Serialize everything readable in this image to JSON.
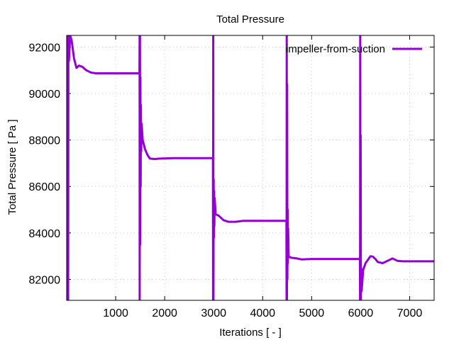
{
  "chart_data": {
    "type": "line",
    "title": "Total Pressure",
    "xlabel": "Iterations [ - ]",
    "ylabel": "Total Pressure [ Pa ]",
    "xlim": [
      0,
      7500
    ],
    "ylim": [
      81100,
      92500
    ],
    "x_ticks": [
      1000,
      2000,
      3000,
      4000,
      5000,
      6000,
      7000
    ],
    "y_ticks": [
      82000,
      84000,
      86000,
      88000,
      90000,
      92000
    ],
    "x_tick_labels": [
      "1000",
      "2000",
      "3000",
      "4000",
      "5000",
      "6000",
      "7000"
    ],
    "y_tick_labels": [
      "82000",
      "84000",
      "86000",
      "88000",
      "90000",
      "92000"
    ],
    "grid": true,
    "legend_position": "top-right",
    "line_color": "#9400d3",
    "series": [
      {
        "name": "impeller-from-suction",
        "points": [
          [
            0,
            81100
          ],
          [
            10,
            92500
          ],
          [
            25,
            92500
          ],
          [
            30,
            81100
          ],
          [
            35,
            92500
          ],
          [
            45,
            91400
          ],
          [
            55,
            91800
          ],
          [
            70,
            92500
          ],
          [
            100,
            92300
          ],
          [
            150,
            91500
          ],
          [
            200,
            91100
          ],
          [
            250,
            91200
          ],
          [
            320,
            91150
          ],
          [
            400,
            91000
          ],
          [
            500,
            90900
          ],
          [
            600,
            90870
          ],
          [
            800,
            90870
          ],
          [
            1000,
            90870
          ],
          [
            1200,
            90870
          ],
          [
            1485,
            90870
          ],
          [
            1488,
            92500
          ],
          [
            1490,
            81100
          ],
          [
            1495,
            92500
          ],
          [
            1500,
            83500
          ],
          [
            1505,
            90700
          ],
          [
            1510,
            86000
          ],
          [
            1515,
            89500
          ],
          [
            1520,
            87500
          ],
          [
            1530,
            88700
          ],
          [
            1550,
            88000
          ],
          [
            1600,
            87600
          ],
          [
            1650,
            87350
          ],
          [
            1700,
            87200
          ],
          [
            1800,
            87180
          ],
          [
            1900,
            87200
          ],
          [
            2200,
            87220
          ],
          [
            2600,
            87220
          ],
          [
            2985,
            87220
          ],
          [
            2988,
            81100
          ],
          [
            2992,
            92500
          ],
          [
            2996,
            81100
          ],
          [
            3000,
            86300
          ],
          [
            3005,
            83800
          ],
          [
            3010,
            85800
          ],
          [
            3015,
            84300
          ],
          [
            3020,
            85500
          ],
          [
            3040,
            84800
          ],
          [
            3100,
            84750
          ],
          [
            3200,
            84550
          ],
          [
            3300,
            84480
          ],
          [
            3450,
            84480
          ],
          [
            3600,
            84520
          ],
          [
            4000,
            84520
          ],
          [
            4485,
            84520
          ],
          [
            4488,
            81100
          ],
          [
            4492,
            92500
          ],
          [
            4496,
            81100
          ],
          [
            4500,
            90400
          ],
          [
            4505,
            82000
          ],
          [
            4510,
            85000
          ],
          [
            4515,
            82700
          ],
          [
            4520,
            84200
          ],
          [
            4530,
            83000
          ],
          [
            4560,
            82950
          ],
          [
            4600,
            82930
          ],
          [
            4700,
            82900
          ],
          [
            4800,
            82860
          ],
          [
            5000,
            82880
          ],
          [
            5500,
            82880
          ],
          [
            5985,
            82880
          ],
          [
            5988,
            81100
          ],
          [
            5992,
            92500
          ],
          [
            5996,
            81100
          ],
          [
            6000,
            88200
          ],
          [
            6005,
            81100
          ],
          [
            6010,
            82500
          ],
          [
            6020,
            81500
          ],
          [
            6050,
            82400
          ],
          [
            6100,
            82700
          ],
          [
            6150,
            82850
          ],
          [
            6200,
            83000
          ],
          [
            6250,
            82980
          ],
          [
            6300,
            82880
          ],
          [
            6350,
            82750
          ],
          [
            6450,
            82700
          ],
          [
            6550,
            82800
          ],
          [
            6650,
            82900
          ],
          [
            6750,
            82800
          ],
          [
            6850,
            82780
          ],
          [
            7000,
            82780
          ],
          [
            7500,
            82780
          ]
        ]
      }
    ]
  }
}
